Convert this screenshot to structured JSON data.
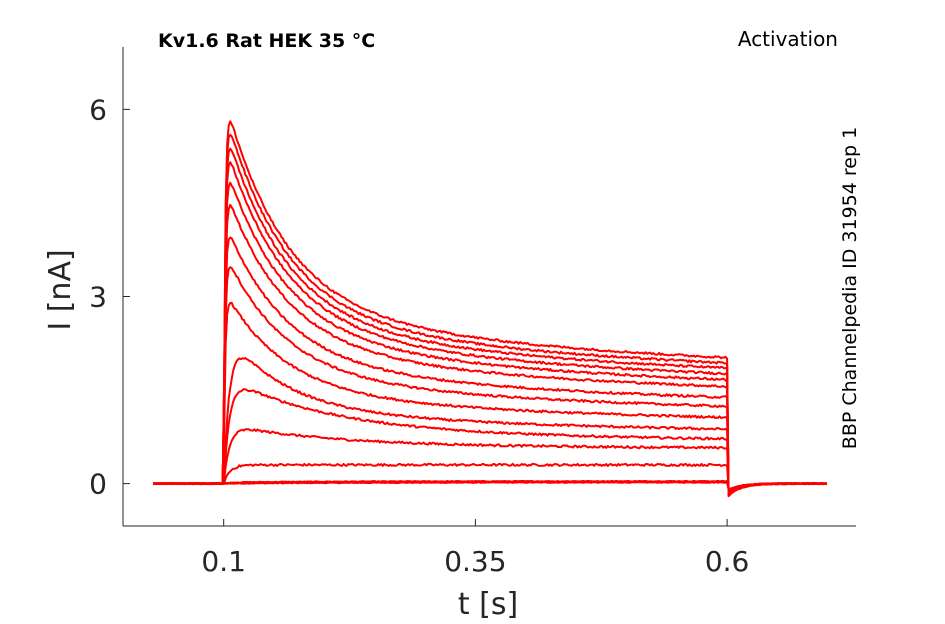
{
  "chart_data": {
    "type": "line",
    "title": "Kv1.6  Rat  HEK  35 °C",
    "subtitle": "Activation",
    "side_label": "BBP Channelpedia ID 31954 rep 1",
    "xlabel": "t [s]",
    "ylabel": "I [nA]",
    "xlim": [
      0.0,
      0.728
    ],
    "ylim": [
      -0.68,
      7.0
    ],
    "xticks": [
      0.1,
      0.35,
      0.6
    ],
    "xtick_labels": [
      "0.1",
      "0.35",
      "0.6"
    ],
    "yticks": [
      0,
      3,
      6
    ],
    "ytick_labels": [
      "0",
      "3",
      "6"
    ],
    "grid": false,
    "line_color": "#ff0000",
    "step_on": 0.1,
    "step_off": 0.6,
    "t_end": 0.7,
    "series": [
      {
        "peak": 0.0,
        "end": 0.02
      },
      {
        "peak": 0.02,
        "end": 0.04
      },
      {
        "peak": 0.3,
        "end": 0.3
      },
      {
        "peak": 0.95,
        "end": 0.55
      },
      {
        "peak": 1.72,
        "end": 0.65
      },
      {
        "peak": 2.48,
        "end": 0.77
      },
      {
        "peak": 3.12,
        "end": 0.93
      },
      {
        "peak": 3.75,
        "end": 1.08
      },
      {
        "peak": 4.25,
        "end": 1.2
      },
      {
        "peak": 4.8,
        "end": 1.35
      },
      {
        "peak": 5.2,
        "end": 1.44
      },
      {
        "peak": 5.55,
        "end": 1.52
      },
      {
        "peak": 5.8,
        "end": 1.6
      },
      {
        "peak": 6.05,
        "end": 1.67
      },
      {
        "peak": 6.25,
        "end": 1.75
      }
    ]
  }
}
